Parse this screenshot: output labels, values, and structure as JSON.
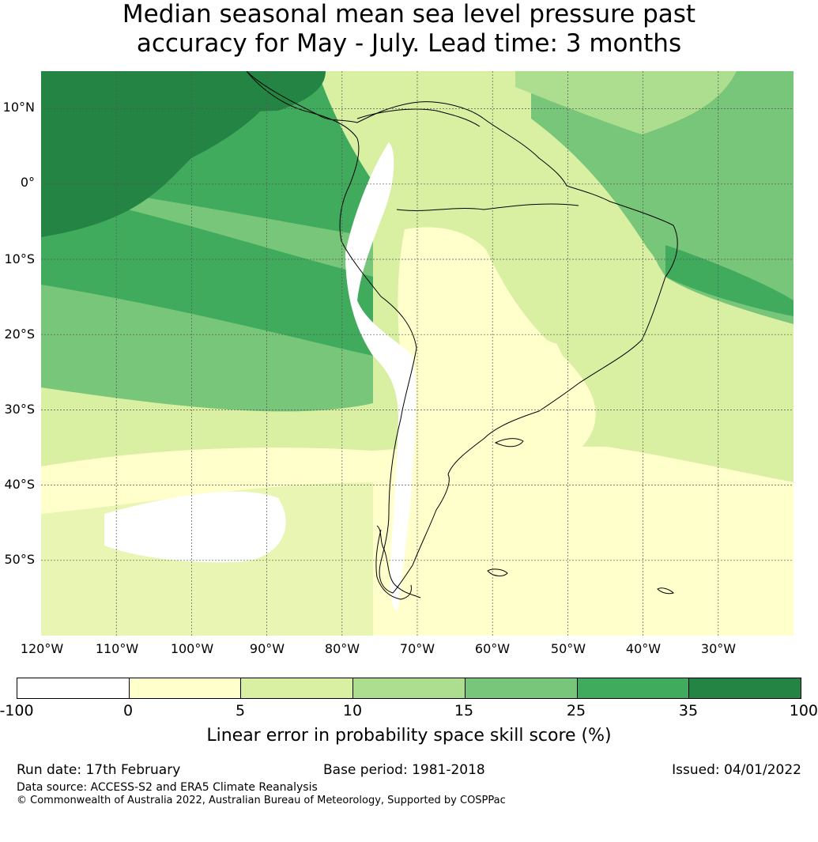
{
  "title": {
    "line1": "Median seasonal mean sea level pressure past",
    "line2": "accuracy for May - July. Lead time: 3 months"
  },
  "map": {
    "lat_ticks": [
      "10°N",
      "0°",
      "10°S",
      "20°S",
      "30°S",
      "40°S",
      "50°S"
    ],
    "lon_ticks": [
      "120°W",
      "110°W",
      "100°W",
      "90°W",
      "80°W",
      "70°W",
      "60°W",
      "50°W",
      "40°W",
      "30°W"
    ],
    "extent": {
      "lon_min": -120,
      "lon_max": -20,
      "lat_min": -60,
      "lat_max": 15
    },
    "coastline_color": "#000000",
    "gridline_color": "#555555"
  },
  "colorbar": {
    "ticks": [
      "-100",
      "0",
      "5",
      "10",
      "15",
      "25",
      "35",
      "100"
    ],
    "colors": [
      "#ffffff",
      "#ffffcc",
      "#d9efa2",
      "#addd8e",
      "#78c679",
      "#41ab5d",
      "#238443"
    ],
    "label": "Linear error in probability space skill score (%)"
  },
  "footer": {
    "run_date": "Run date: 17th February",
    "base_period": "Base period: 1981-2018",
    "issued": "Issued: 04/01/2022",
    "data_source": "Data source: ACCESS-S2 and ERA5 Climate Reanalysis",
    "copyright": "© Commonwealth of Australia 2022, Australian Bureau of Meteorology, Supported by COSPPac"
  }
}
